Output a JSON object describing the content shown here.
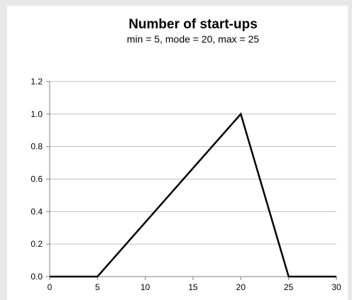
{
  "chart_data": {
    "type": "line",
    "title": "Number of start-ups",
    "subtitle": "min = 5, mode = 20, max = 25",
    "xlabel": "",
    "ylabel": "",
    "xlim": [
      0,
      30
    ],
    "ylim": [
      0,
      1.2
    ],
    "x_ticks": [
      "0",
      "5",
      "10",
      "15",
      "20",
      "25",
      "30"
    ],
    "y_ticks": [
      "0.0",
      "0.2",
      "0.4",
      "0.6",
      "0.8",
      "1.0",
      "1.2"
    ],
    "grid": true,
    "legend": "none",
    "line_color": "#000000",
    "grid_color": "#bfbfbf",
    "series": [
      {
        "x": [
          0,
          5,
          15,
          20,
          25,
          30
        ],
        "y": [
          0,
          0,
          0.667,
          1.0,
          0,
          0
        ]
      }
    ]
  }
}
